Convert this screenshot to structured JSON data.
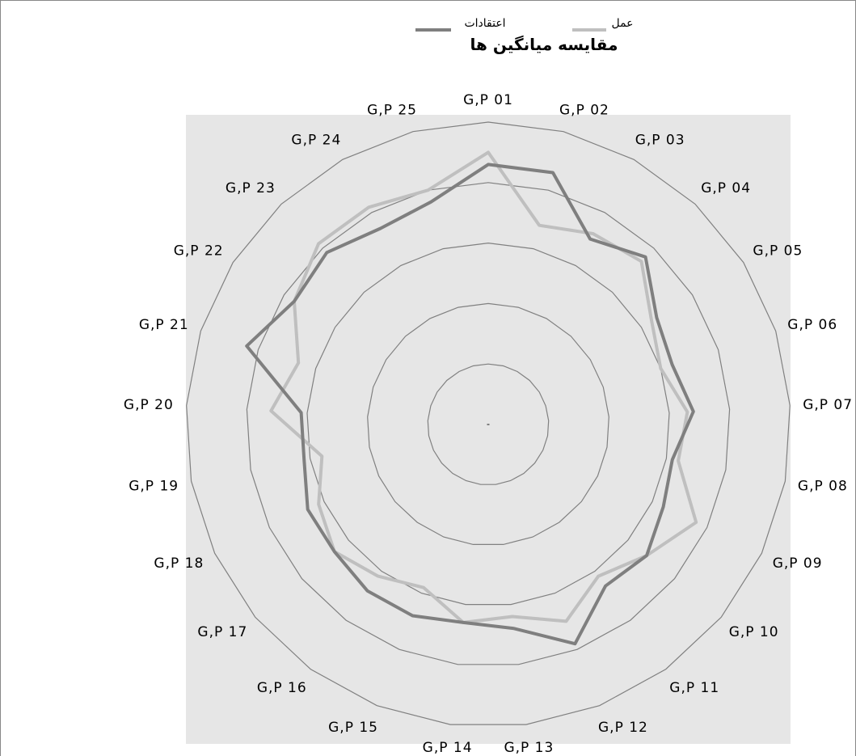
{
  "chart_data": {
    "type": "radar",
    "title": "مقایسه میانگین ها",
    "categories": [
      "G,P 01",
      "G,P 02",
      "G,P 03",
      "G,P 04",
      "G,P 05",
      "G,P 06",
      "G,P 07",
      "G,P 08",
      "G,P 09",
      "G,P 10",
      "G,P 11",
      "G,P 12",
      "G,P 13",
      "G,P 14",
      "G,P 15",
      "G,P 16",
      "G,P 17",
      "G,P 18",
      "G,P 19",
      "G,P 20",
      "G,P 21",
      "G,P 22",
      "G,P 23",
      "G,P 24",
      "G,P 25"
    ],
    "rmax": 5,
    "gridlines": 5,
    "legend_position": "top",
    "series": [
      {
        "name": "اعتقادات",
        "color": "#7f7f7f",
        "values": [
          4.3,
          4.3,
          3.5,
          3.8,
          3.3,
          3.2,
          3.4,
          3.1,
          3.2,
          3.4,
          3.3,
          3.9,
          3.4,
          3.3,
          3.4,
          3.4,
          3.3,
          3.3,
          3.1,
          3.1,
          4.2,
          3.8,
          3.9,
          3.7,
          3.8
        ]
      },
      {
        "name": "عمل",
        "color": "#bfbfbf",
        "values": [
          4.5,
          3.4,
          3.6,
          3.7,
          3.2,
          3.0,
          3.3,
          3.2,
          3.8,
          3.4,
          3.1,
          3.5,
          3.2,
          3.3,
          2.9,
          3.1,
          3.3,
          3.1,
          2.8,
          3.6,
          3.3,
          3.8,
          4.1,
          4.1,
          4.0
        ]
      }
    ]
  }
}
